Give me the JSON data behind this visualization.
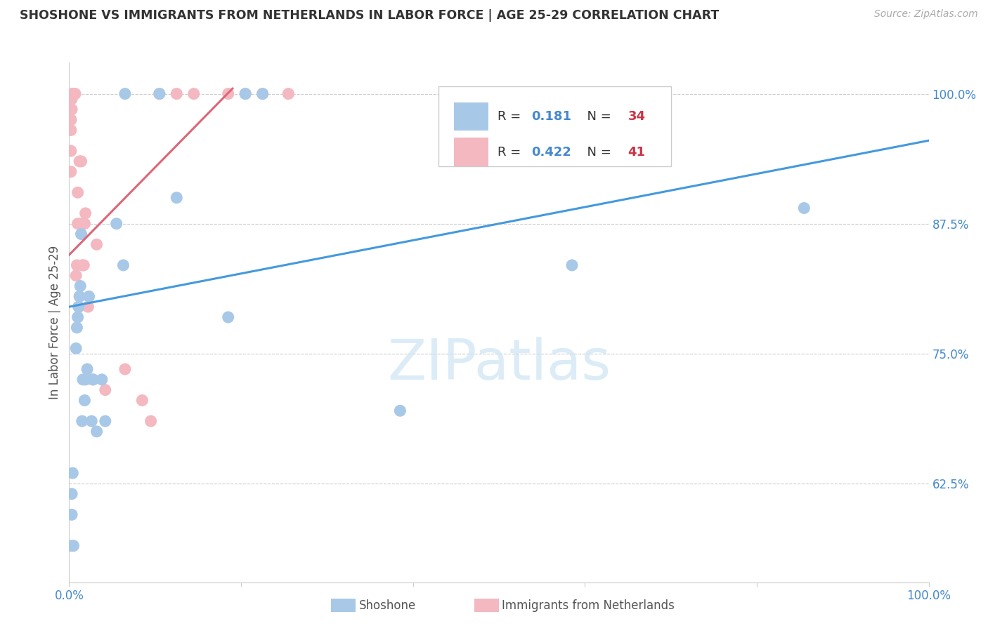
{
  "title": "SHOSHONE VS IMMIGRANTS FROM NETHERLANDS IN LABOR FORCE | AGE 25-29 CORRELATION CHART",
  "source": "Source: ZipAtlas.com",
  "ylabel": "In Labor Force | Age 25-29",
  "xlim": [
    0.0,
    1.0
  ],
  "ylim": [
    0.53,
    1.03
  ],
  "ytick_positions": [
    0.625,
    0.75,
    0.875,
    1.0
  ],
  "ytick_labels": [
    "62.5%",
    "75.0%",
    "87.5%",
    "100.0%"
  ],
  "shoshone_color": "#a8c8e8",
  "netherlands_color": "#f4b8c0",
  "shoshone_line_color": "#4499dd",
  "netherlands_line_color": "#dd6677",
  "watermark": "ZIPatlas",
  "shoshone_x": [
    0.003,
    0.003,
    0.003,
    0.004,
    0.005,
    0.008,
    0.009,
    0.01,
    0.011,
    0.012,
    0.013,
    0.014,
    0.015,
    0.016,
    0.018,
    0.019,
    0.021,
    0.023,
    0.026,
    0.028,
    0.032,
    0.038,
    0.042,
    0.055,
    0.063,
    0.065,
    0.105,
    0.125,
    0.185,
    0.205,
    0.225,
    0.385,
    0.585,
    0.855
  ],
  "shoshone_y": [
    0.565,
    0.595,
    0.615,
    0.635,
    0.565,
    0.755,
    0.775,
    0.785,
    0.795,
    0.805,
    0.815,
    0.865,
    0.685,
    0.725,
    0.705,
    0.725,
    0.735,
    0.805,
    0.685,
    0.725,
    0.675,
    0.725,
    0.685,
    0.875,
    0.835,
    1.0,
    1.0,
    0.9,
    0.785,
    1.0,
    1.0,
    0.695,
    0.835,
    0.89
  ],
  "netherlands_x": [
    0.002,
    0.002,
    0.002,
    0.002,
    0.002,
    0.003,
    0.003,
    0.004,
    0.004,
    0.005,
    0.005,
    0.006,
    0.006,
    0.007,
    0.008,
    0.009,
    0.01,
    0.01,
    0.011,
    0.012,
    0.013,
    0.014,
    0.015,
    0.016,
    0.017,
    0.018,
    0.019,
    0.022,
    0.027,
    0.032,
    0.042,
    0.065,
    0.085,
    0.095,
    0.105,
    0.125,
    0.145,
    0.185,
    0.205,
    0.225,
    0.255
  ],
  "netherlands_y": [
    0.925,
    0.945,
    0.965,
    0.975,
    0.975,
    0.985,
    0.995,
    1.0,
    1.0,
    1.0,
    1.0,
    1.0,
    1.0,
    1.0,
    0.825,
    0.835,
    0.875,
    0.905,
    0.795,
    0.935,
    0.875,
    0.935,
    0.835,
    0.875,
    0.835,
    0.875,
    0.885,
    0.795,
    0.725,
    0.855,
    0.715,
    0.735,
    0.705,
    0.685,
    1.0,
    1.0,
    1.0,
    1.0,
    1.0,
    1.0,
    1.0
  ],
  "blue_line_x": [
    0.0,
    1.0
  ],
  "blue_line_y": [
    0.795,
    0.955
  ],
  "pink_line_x": [
    0.0,
    0.19
  ],
  "pink_line_y": [
    0.845,
    1.005
  ]
}
